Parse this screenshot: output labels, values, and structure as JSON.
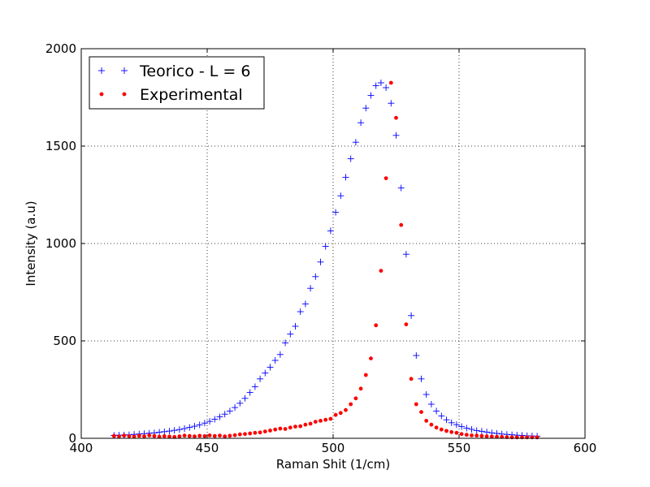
{
  "chart_data": {
    "type": "scatter",
    "title": "",
    "xlabel": "Raman Shit (1/cm)",
    "ylabel": "Intensity (a.u)",
    "xlim": [
      400,
      600
    ],
    "ylim": [
      0,
      2000
    ],
    "xticks": [
      400,
      450,
      500,
      550,
      600
    ],
    "yticks": [
      0,
      500,
      1000,
      1500,
      2000
    ],
    "grid": true,
    "legend_position": "top-left",
    "series": [
      {
        "name": "Teorico - L = 6",
        "marker": "plus",
        "color": "#0000ff",
        "x": [
          413,
          415,
          417,
          419,
          421,
          423,
          425,
          427,
          429,
          431,
          433,
          435,
          437,
          439,
          441,
          443,
          445,
          447,
          449,
          451,
          453,
          455,
          457,
          459,
          461,
          463,
          465,
          467,
          469,
          471,
          473,
          475,
          477,
          479,
          481,
          483,
          485,
          487,
          489,
          491,
          493,
          495,
          497,
          499,
          501,
          503,
          505,
          507,
          509,
          511,
          513,
          515,
          517,
          519,
          521,
          523,
          525,
          527,
          529,
          531,
          533,
          535,
          537,
          539,
          541,
          543,
          545,
          547,
          549,
          551,
          553,
          555,
          557,
          559,
          561,
          563,
          565,
          567,
          569,
          571,
          573,
          575,
          577,
          579,
          581
        ],
        "y": [
          15,
          16,
          17,
          18,
          20,
          22,
          24,
          26,
          28,
          31,
          34,
          37,
          41,
          45,
          50,
          56,
          62,
          69,
          78,
          87,
          98,
          110,
          124,
          140,
          158,
          180,
          205,
          235,
          265,
          305,
          335,
          365,
          400,
          430,
          490,
          535,
          575,
          650,
          690,
          770,
          830,
          905,
          985,
          1065,
          1160,
          1245,
          1340,
          1435,
          1520,
          1620,
          1695,
          1760,
          1810,
          1825,
          1800,
          1720,
          1555,
          1285,
          945,
          630,
          425,
          305,
          225,
          175,
          140,
          115,
          95,
          80,
          70,
          60,
          52,
          46,
          40,
          36,
          32,
          28,
          25,
          22,
          20,
          18,
          16,
          15,
          13,
          12,
          11
        ]
      },
      {
        "name": "Experimental",
        "marker": "dot",
        "color": "#ff0000",
        "x": [
          413,
          415,
          417,
          419,
          421,
          423,
          425,
          427,
          429,
          431,
          433,
          435,
          437,
          439,
          441,
          443,
          445,
          447,
          449,
          451,
          453,
          455,
          457,
          459,
          461,
          463,
          465,
          467,
          469,
          471,
          473,
          475,
          477,
          479,
          481,
          483,
          485,
          487,
          489,
          491,
          493,
          495,
          497,
          499,
          501,
          503,
          505,
          507,
          509,
          511,
          513,
          515,
          517,
          519,
          521,
          523,
          525,
          527,
          529,
          531,
          533,
          535,
          537,
          539,
          541,
          543,
          545,
          547,
          549,
          551,
          553,
          555,
          557,
          559,
          561,
          563,
          565,
          567,
          569,
          571,
          573,
          575,
          577,
          579,
          581
        ],
        "y": [
          12,
          10,
          14,
          11,
          9,
          13,
          10,
          15,
          12,
          8,
          11,
          9,
          7,
          10,
          14,
          12,
          10,
          13,
          11,
          15,
          12,
          14,
          10,
          13,
          16,
          20,
          22,
          25,
          28,
          30,
          35,
          40,
          45,
          50,
          48,
          55,
          60,
          62,
          70,
          75,
          85,
          90,
          95,
          100,
          120,
          130,
          145,
          175,
          205,
          255,
          325,
          410,
          580,
          860,
          1335,
          1825,
          1645,
          1095,
          585,
          305,
          175,
          135,
          90,
          70,
          55,
          45,
          38,
          32,
          28,
          22,
          18,
          15,
          14,
          12,
          10,
          9,
          8,
          7,
          6,
          5,
          5,
          5,
          5,
          5,
          5
        ]
      }
    ]
  }
}
